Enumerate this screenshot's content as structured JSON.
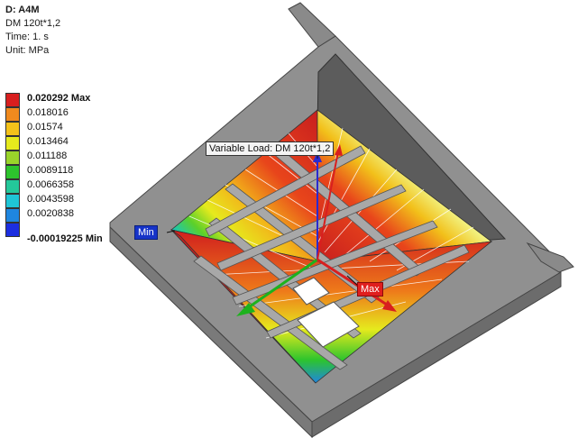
{
  "result": {
    "name": "D: A4M",
    "type": "DM 120t*1,2",
    "time": "Time: 1. s",
    "unit": "Unit: MPa"
  },
  "legend": [
    {
      "value": "0.020292 Max",
      "color": "#d81f1f",
      "emphasis": true
    },
    {
      "value": "0.018016",
      "color": "#f08a1e",
      "emphasis": false
    },
    {
      "value": "0.01574",
      "color": "#f4c21a",
      "emphasis": false
    },
    {
      "value": "0.013464",
      "color": "#e6ea1d",
      "emphasis": false
    },
    {
      "value": "0.011188",
      "color": "#9ad42a",
      "emphasis": false
    },
    {
      "value": "0.0089118",
      "color": "#2dc42d",
      "emphasis": false
    },
    {
      "value": "0.0066358",
      "color": "#24c89a",
      "emphasis": false
    },
    {
      "value": "0.0043598",
      "color": "#1fc5d6",
      "emphasis": false
    },
    {
      "value": "0.0020838",
      "color": "#1f86e0",
      "emphasis": false
    },
    {
      "value": "-0.00019225 Min",
      "color": "#1c2ee0",
      "emphasis": true
    }
  ],
  "probes": {
    "min_label": "Min",
    "max_label": "Max",
    "load_label": "Variable Load: DM 120t*1,2"
  },
  "colors": {
    "frame_gray": "#8e8e8e",
    "frame_dark": "#5a5a5a",
    "mesh_line": "#ffffff"
  }
}
